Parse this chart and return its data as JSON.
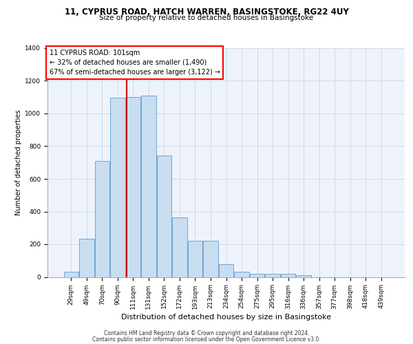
{
  "title_line1": "11, CYPRUS ROAD, HATCH WARREN, BASINGSTOKE, RG22 4UY",
  "title_line2": "Size of property relative to detached houses in Basingstoke",
  "xlabel": "Distribution of detached houses by size in Basingstoke",
  "ylabel": "Number of detached properties",
  "footer_line1": "Contains HM Land Registry data © Crown copyright and database right 2024.",
  "footer_line2": "Contains public sector information licensed under the Open Government Licence v3.0.",
  "annotation_line1": "11 CYPRUS ROAD: 101sqm",
  "annotation_line2": "← 32% of detached houses are smaller (1,490)",
  "annotation_line3": "67% of semi-detached houses are larger (3,122) →",
  "bar_labels": [
    "29sqm",
    "49sqm",
    "70sqm",
    "90sqm",
    "111sqm",
    "131sqm",
    "152sqm",
    "172sqm",
    "193sqm",
    "213sqm",
    "234sqm",
    "254sqm",
    "275sqm",
    "295sqm",
    "316sqm",
    "336sqm",
    "357sqm",
    "377sqm",
    "398sqm",
    "418sqm",
    "439sqm"
  ],
  "bar_values": [
    30,
    235,
    710,
    1095,
    1100,
    1110,
    745,
    365,
    220,
    220,
    80,
    30,
    20,
    20,
    20,
    10,
    0,
    0,
    0,
    0,
    0
  ],
  "bar_color": "#c9ddf0",
  "bar_edge_color": "#5b9bd5",
  "grid_color": "#d0d8e8",
  "background_color": "#eef3fb",
  "vline_color": "#cc0000",
  "vline_pos": 3.575,
  "ylim": [
    0,
    1400
  ],
  "yticks": [
    0,
    200,
    400,
    600,
    800,
    1000,
    1200,
    1400
  ],
  "title1_fontsize": 8.5,
  "title2_fontsize": 7.5,
  "ylabel_fontsize": 7.0,
  "xlabel_fontsize": 8.0,
  "tick_fontsize": 6.5,
  "footer_fontsize": 5.5,
  "ann_fontsize": 7.0
}
